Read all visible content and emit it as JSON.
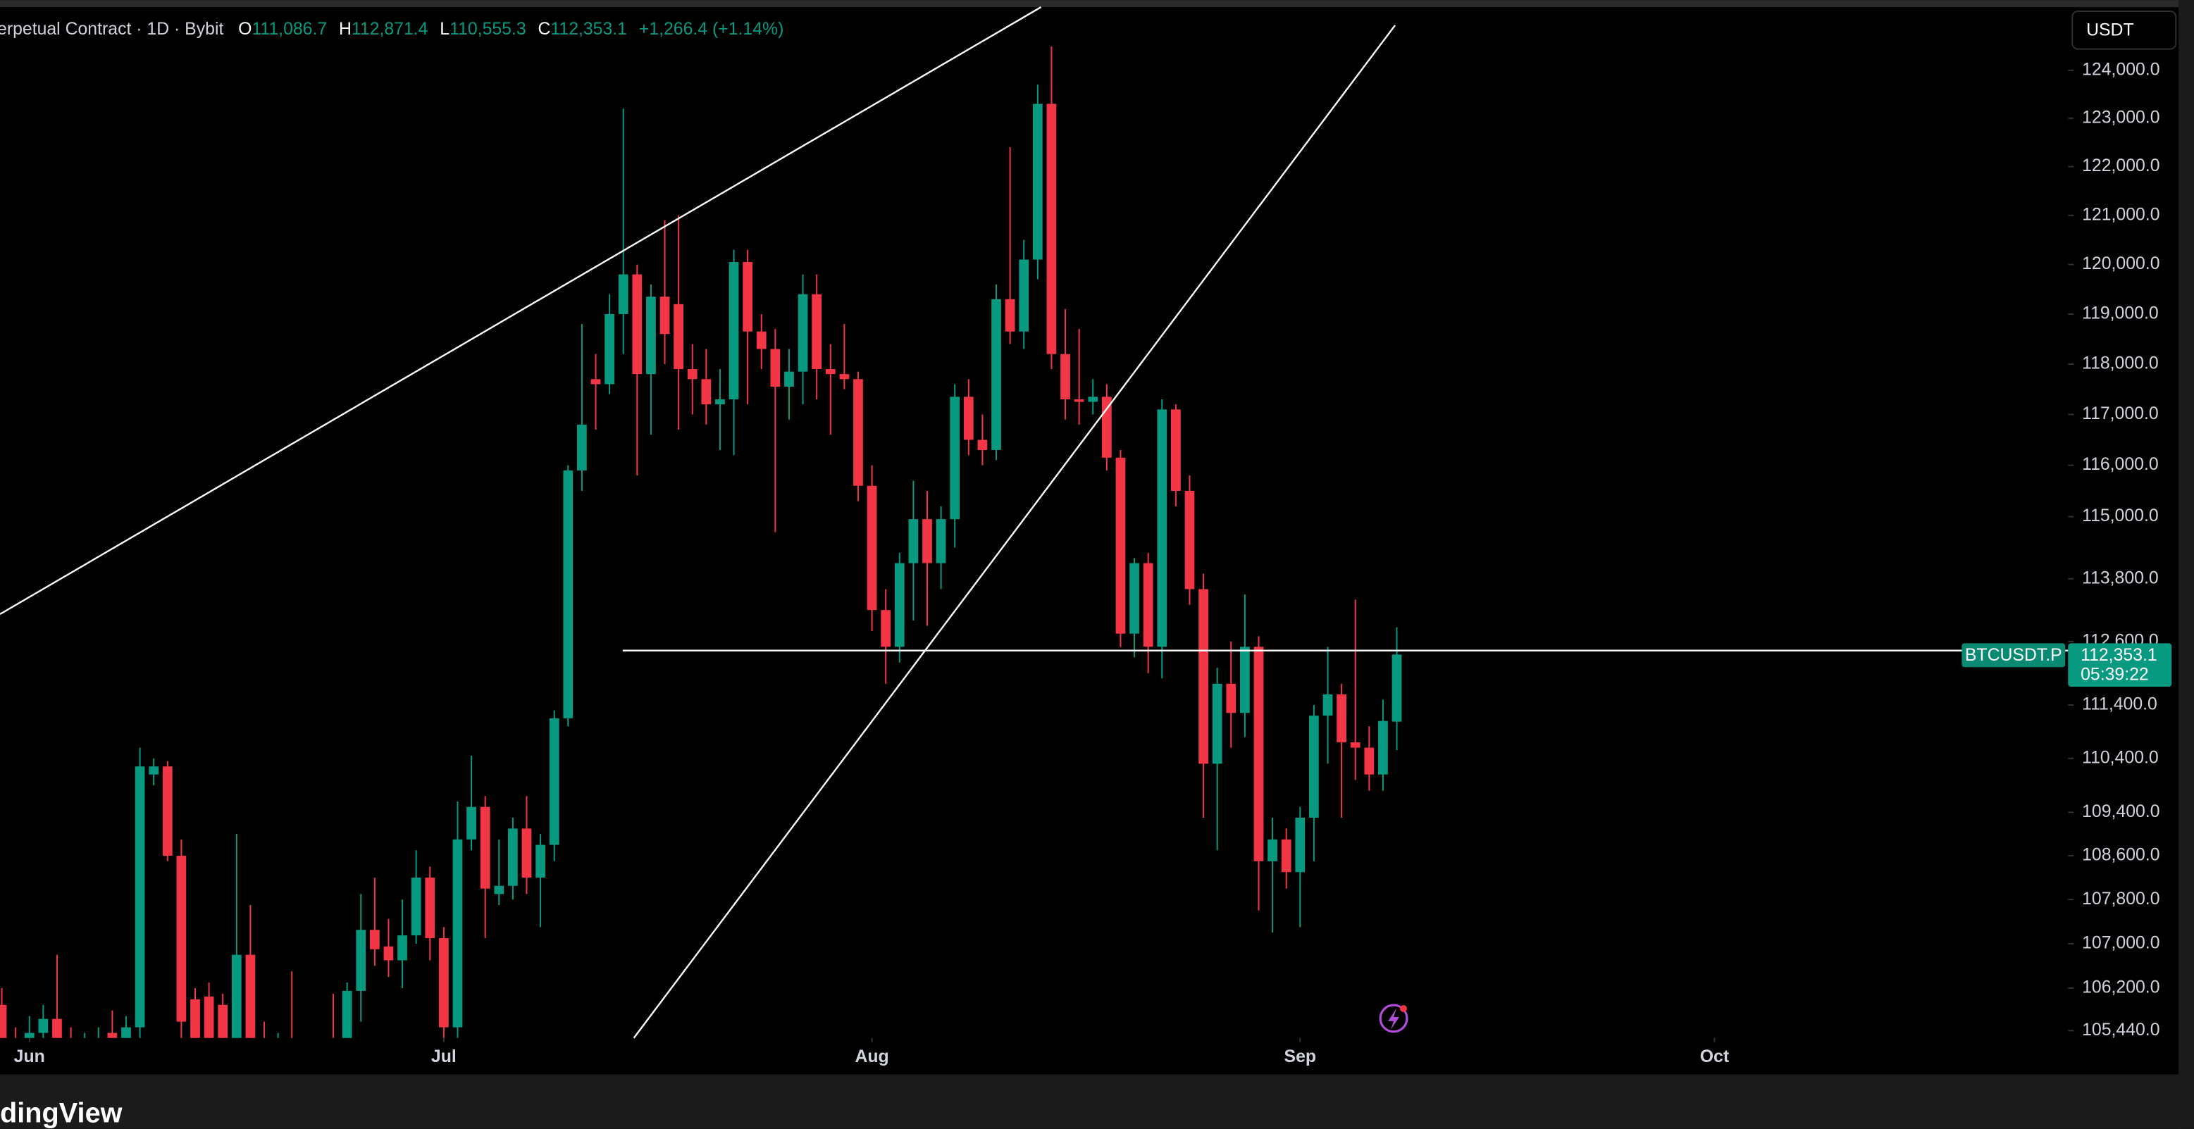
{
  "chart_data": {
    "type": "candlestick",
    "header": {
      "title": "erpetual Contract · 1D · Bybit",
      "open_label": "O",
      "open": "111,086.7",
      "high_label": "H",
      "high": "112,871.4",
      "low_label": "L",
      "low": "110,555.3",
      "close_label": "C",
      "close": "112,353.1",
      "change": "+1,266.4 (+1.14%)"
    },
    "currency_button": "USDT",
    "brand": "dingView",
    "log_scale": true,
    "up_color": "#089981",
    "down_color": "#f23645",
    "x": [
      -2,
      -1,
      0,
      1,
      2,
      3,
      4,
      5,
      6,
      7,
      8,
      9,
      10,
      11,
      12,
      13,
      14,
      15,
      16,
      17,
      18,
      19,
      20,
      21,
      22,
      23,
      24,
      25,
      26,
      27,
      28,
      29,
      30,
      31,
      32,
      33,
      34,
      35,
      36,
      37,
      38,
      39,
      40,
      41,
      42,
      43,
      44,
      45,
      46,
      47,
      48,
      49,
      50,
      51,
      52,
      53,
      54,
      55,
      56,
      57,
      58,
      59,
      60,
      61,
      62,
      63,
      64,
      65,
      66,
      67,
      68,
      69,
      70,
      71,
      72,
      73,
      74,
      75,
      76,
      77,
      78,
      79,
      80,
      81,
      82,
      83,
      84,
      85,
      86,
      87,
      88,
      89,
      90,
      91,
      92,
      93,
      94,
      95,
      96,
      97,
      98,
      99
    ],
    "open": [
      105900,
      105100,
      105200,
      105400,
      105650,
      105200,
      105000,
      105100,
      105400,
      105200,
      105500,
      110100,
      110250,
      108600,
      106000,
      106050,
      105900,
      105300,
      106800,
      105300,
      105000,
      105200,
      105100,
      104900,
      105100,
      105000,
      106150,
      107250,
      106950,
      106700,
      107150,
      108200,
      107100,
      105500,
      108900,
      109500,
      107900,
      108050,
      109100,
      108200,
      108800,
      111150,
      115900,
      117700,
      117600,
      119000,
      119800,
      117800,
      119350,
      119200,
      117900,
      117700,
      117200,
      117300,
      120050,
      118650,
      118300,
      117550,
      117850,
      119400,
      117900,
      117800,
      117700,
      115600,
      113200,
      112500,
      114100,
      114950,
      114100,
      114950,
      117350,
      116500,
      116300,
      119300,
      118650,
      120100,
      123300,
      118200,
      117300,
      117250,
      117350,
      116150,
      112750,
      114100,
      112500,
      117100,
      115500,
      113600,
      110300,
      111800,
      111250,
      112500,
      108500,
      108900,
      108300,
      109300,
      111200,
      111600,
      110700,
      110600,
      110100,
      111086.7
    ],
    "high": [
      106200,
      105500,
      105700,
      105900,
      106800,
      105500,
      105400,
      105500,
      105800,
      105700,
      110600,
      110400,
      110350,
      108900,
      106200,
      106300,
      106100,
      109000,
      107700,
      105600,
      105400,
      106500,
      105300,
      105200,
      106100,
      106300,
      107900,
      108200,
      107450,
      107800,
      108700,
      108400,
      107300,
      109600,
      110450,
      109700,
      108900,
      109300,
      109700,
      109000,
      111300,
      116000,
      118800,
      118200,
      119400,
      123200,
      120000,
      119600,
      120900,
      121000,
      118400,
      118300,
      117900,
      120300,
      120300,
      119000,
      118700,
      118300,
      119800,
      119800,
      118400,
      118800,
      117850,
      116000,
      113600,
      114300,
      115700,
      115500,
      115200,
      117600,
      117700,
      117000,
      119600,
      122400,
      120500,
      123700,
      124500,
      119100,
      118700,
      117700,
      117600,
      116300,
      114200,
      114300,
      117300,
      117200,
      115800,
      113900,
      112100,
      112600,
      113500,
      112700,
      109300,
      109100,
      109500,
      111400,
      112500,
      111800,
      113400,
      111000,
      111500,
      112871.4
    ],
    "low": [
      104900,
      104700,
      104900,
      105100,
      105000,
      104800,
      104700,
      104800,
      105100,
      104900,
      105300,
      109900,
      108500,
      105300,
      105100,
      105000,
      104900,
      105100,
      104900,
      104800,
      104700,
      104900,
      104700,
      104600,
      104800,
      104900,
      105600,
      106600,
      106400,
      106200,
      107000,
      106700,
      105300,
      105300,
      108700,
      107100,
      107700,
      107800,
      107900,
      107300,
      108500,
      111000,
      115500,
      116700,
      117400,
      118200,
      115800,
      116600,
      118000,
      116700,
      117000,
      116800,
      116300,
      116200,
      117200,
      117900,
      114700,
      116900,
      117200,
      117300,
      116600,
      117500,
      115300,
      112800,
      111800,
      112200,
      113000,
      112900,
      113600,
      114400,
      116200,
      116000,
      116100,
      118400,
      118300,
      119700,
      117900,
      116900,
      116800,
      117000,
      115900,
      112500,
      112300,
      112000,
      111900,
      115200,
      113300,
      109300,
      108700,
      110600,
      110800,
      107600,
      107200,
      108000,
      107300,
      108500,
      110300,
      109300,
      110000,
      109800,
      109800,
      110555.3
    ],
    "close": [
      105200,
      105000,
      105400,
      105650,
      105200,
      105000,
      105100,
      105300,
      105200,
      105500,
      110250,
      110250,
      108600,
      105600,
      105300,
      105200,
      105100,
      106800,
      105300,
      105000,
      105200,
      105100,
      104900,
      105100,
      105000,
      106150,
      107250,
      106900,
      106700,
      107150,
      108200,
      107100,
      105500,
      108900,
      109500,
      108000,
      108050,
      109100,
      108200,
      108800,
      111150,
      115900,
      116800,
      117600,
      119000,
      119800,
      117800,
      119350,
      118600,
      117900,
      117700,
      117200,
      117300,
      120050,
      118650,
      118300,
      117550,
      117850,
      119400,
      117900,
      117800,
      117700,
      115600,
      113200,
      112500,
      114100,
      114950,
      114100,
      114950,
      117350,
      116500,
      116300,
      119300,
      118650,
      120100,
      123300,
      118200,
      117300,
      117250,
      117350,
      116150,
      112750,
      114100,
      112500,
      117100,
      115500,
      113600,
      110300,
      111800,
      111250,
      112500,
      108500,
      108900,
      108300,
      109300,
      111200,
      111600,
      110700,
      110600,
      110100,
      111100,
      112353.1
    ],
    "xlim": [
      -2.13,
      147.6
    ],
    "xticks": [
      {
        "value": 0,
        "label": "Jun"
      },
      {
        "value": 30,
        "label": "Jul"
      },
      {
        "value": 61,
        "label": "Aug"
      },
      {
        "value": 92,
        "label": "Sep"
      },
      {
        "value": 122,
        "label": "Oct"
      }
    ],
    "ylim": [
      105310,
      125330
    ],
    "yticks": [
      {
        "value": 124000,
        "label": "124,000.0"
      },
      {
        "value": 123000,
        "label": "123,000.0"
      },
      {
        "value": 122000,
        "label": "122,000.0"
      },
      {
        "value": 121000,
        "label": "121,000.0"
      },
      {
        "value": 120000,
        "label": "120,000.0"
      },
      {
        "value": 119000,
        "label": "119,000.0"
      },
      {
        "value": 118000,
        "label": "118,000.0"
      },
      {
        "value": 117000,
        "label": "117,000.0"
      },
      {
        "value": 116000,
        "label": "116,000.0"
      },
      {
        "value": 115000,
        "label": "115,000.0"
      },
      {
        "value": 113800,
        "label": "113,800.0"
      },
      {
        "value": 112600,
        "label": "112,600.0"
      },
      {
        "value": 111400,
        "label": "111,400.0"
      },
      {
        "value": 110400,
        "label": "110,400.0"
      },
      {
        "value": 109400,
        "label": "109,400.0"
      },
      {
        "value": 108600,
        "label": "108,600.0"
      },
      {
        "value": 107800,
        "label": "107,800.0"
      },
      {
        "value": 107000,
        "label": "107,000.0"
      },
      {
        "value": 106200,
        "label": "106,200.0"
      },
      {
        "value": 105440,
        "label": "105,440.0"
      }
    ],
    "price_tag": {
      "symbol": "BTCUSDT.P",
      "price": {
        "value": 112353.1,
        "label": "112,353.1"
      },
      "countdown": "05:39:22"
    }
  }
}
